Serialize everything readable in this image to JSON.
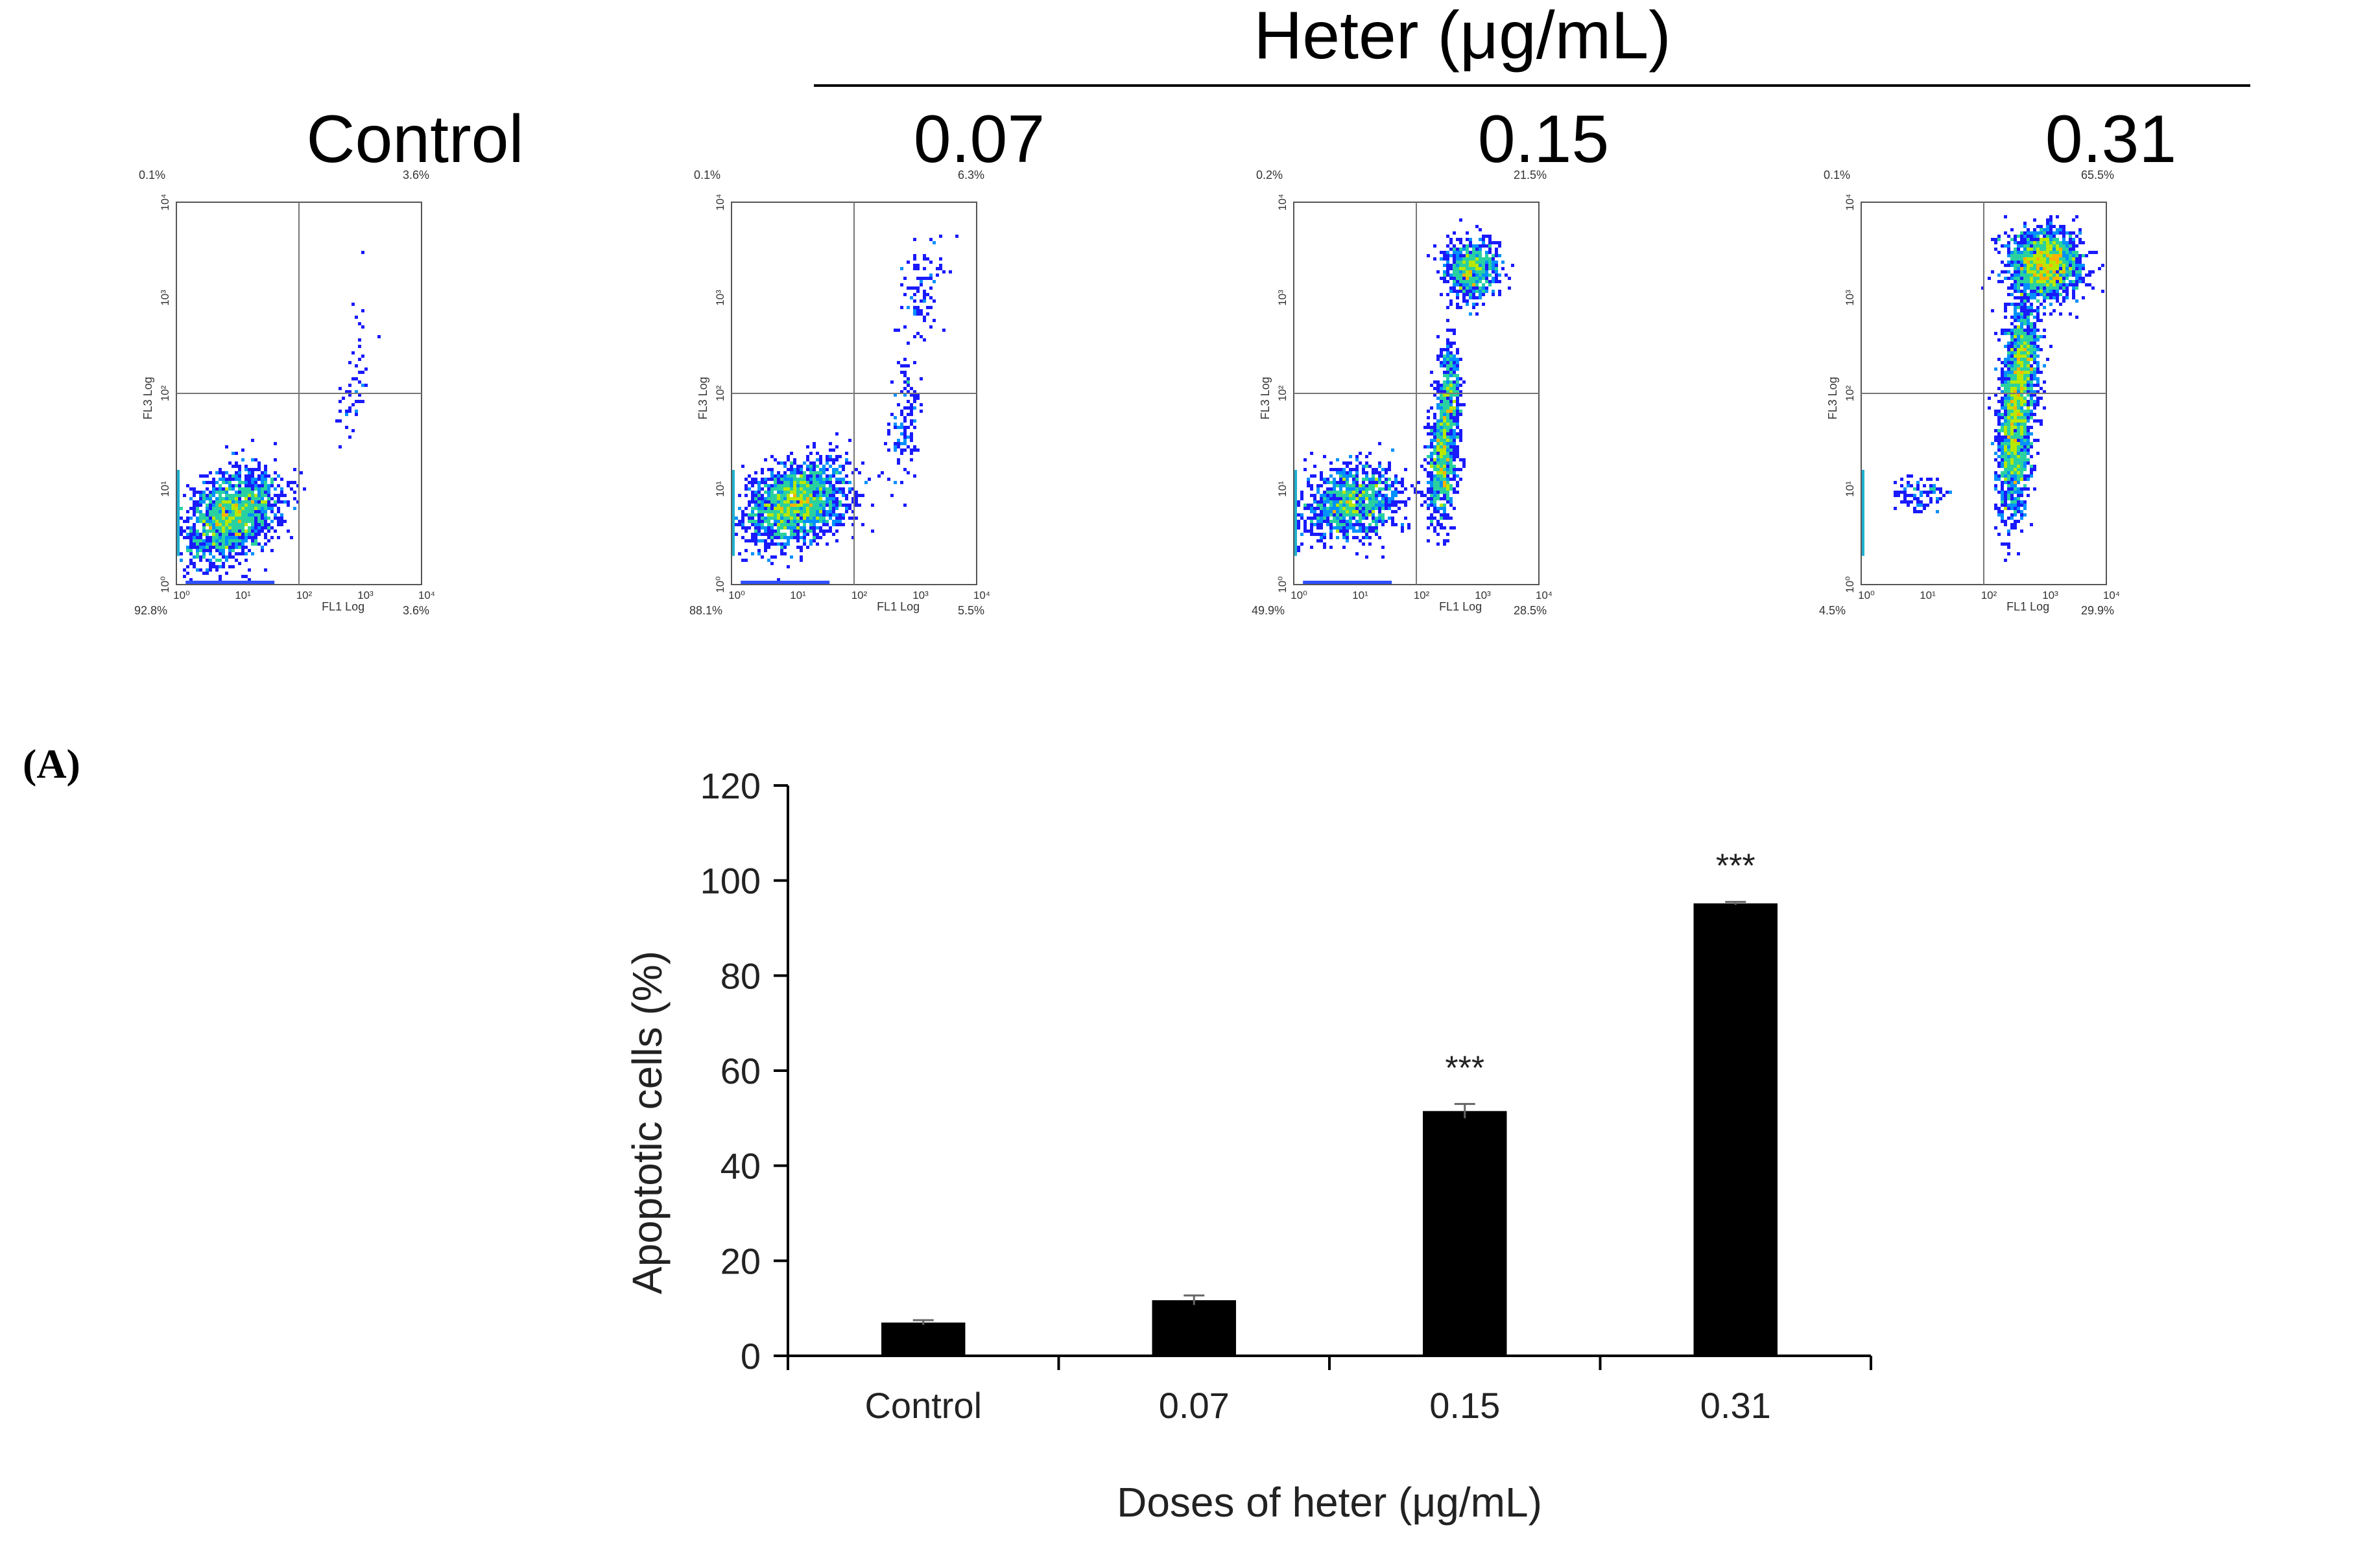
{
  "heading": {
    "title": "Heter (μg/mL)",
    "group_labels": [
      "Control",
      "0.07",
      "0.15",
      "0.31"
    ]
  },
  "panel_label": "(A)",
  "flow_panels": [
    {
      "name": "Control",
      "x_axis_label": "FL1 Log",
      "y_axis_label": "FL3 Log",
      "quadrants": {
        "upper_left": "0.1%",
        "upper_right": "3.6%",
        "lower_left": "92.8%",
        "lower_right": "3.6%"
      },
      "x_ticks": [
        "10⁰",
        "10¹",
        "10²",
        "10³",
        "10⁴"
      ],
      "y_ticks": [
        "10⁰",
        "10¹",
        "10²",
        "10³",
        "10⁴"
      ],
      "clusters": [
        {
          "x": 0.9,
          "y": 0.72,
          "sx": 0.38,
          "sy": 0.22,
          "n": 1700,
          "tilt": 0.25
        },
        {
          "x": 2.85,
          "y": 1.9,
          "sx": 0.1,
          "sy": 0.18,
          "n": 40,
          "tilt": 0.6
        },
        {
          "x": 3.0,
          "y": 2.8,
          "sx": 0.08,
          "sy": 0.35,
          "n": 12,
          "tilt": 0
        }
      ]
    },
    {
      "name": "0.07",
      "x_axis_label": "FL1 Log",
      "y_axis_label": "FL3 Log",
      "quadrants": {
        "upper_left": "0.1%",
        "upper_right": "6.3%",
        "lower_left": "88.1%",
        "lower_right": "5.5%"
      },
      "x_ticks": [
        "10⁰",
        "10¹",
        "10²",
        "10³",
        "10⁴"
      ],
      "y_ticks": [
        "10⁰",
        "10¹",
        "10²",
        "10³",
        "10⁴"
      ],
      "clusters": [
        {
          "x": 1.05,
          "y": 0.85,
          "sx": 0.42,
          "sy": 0.2,
          "n": 1800,
          "tilt": 0.15
        },
        {
          "x": 2.8,
          "y": 1.65,
          "sx": 0.13,
          "sy": 0.3,
          "n": 120,
          "tilt": 0.7
        },
        {
          "x": 3.1,
          "y": 3.1,
          "sx": 0.18,
          "sy": 0.28,
          "n": 90,
          "tilt": 0.5
        }
      ]
    },
    {
      "name": "0.15",
      "x_axis_label": "FL1 Log",
      "y_axis_label": "FL3 Log",
      "quadrants": {
        "upper_left": "0.2%",
        "upper_right": "21.5%",
        "lower_left": "49.9%",
        "lower_right": "28.5%"
      },
      "x_ticks": [
        "10⁰",
        "10¹",
        "10²",
        "10³",
        "10⁴"
      ],
      "y_ticks": [
        "10⁰",
        "10¹",
        "10²",
        "10³",
        "10⁴"
      ],
      "clusters": [
        {
          "x": 0.95,
          "y": 0.85,
          "sx": 0.4,
          "sy": 0.2,
          "n": 1100,
          "tilt": 0.1
        },
        {
          "x": 2.45,
          "y": 1.4,
          "sx": 0.12,
          "sy": 0.35,
          "n": 900,
          "tilt": 0.8
        },
        {
          "x": 2.55,
          "y": 2.1,
          "sx": 0.08,
          "sy": 0.25,
          "n": 220,
          "tilt": 0
        },
        {
          "x": 2.9,
          "y": 3.3,
          "sx": 0.22,
          "sy": 0.15,
          "n": 700,
          "tilt": 0
        }
      ]
    },
    {
      "name": "0.31",
      "x_axis_label": "FL1 Log",
      "y_axis_label": "FL3 Log",
      "quadrants": {
        "upper_left": "0.1%",
        "upper_right": "65.5%",
        "lower_left": "4.5%",
        "lower_right": "29.9%"
      },
      "x_ticks": [
        "10⁰",
        "10¹",
        "10²",
        "10³",
        "10⁴"
      ],
      "y_ticks": [
        "10⁰",
        "10¹",
        "10²",
        "10³",
        "10⁴"
      ],
      "clusters": [
        {
          "x": 0.95,
          "y": 0.95,
          "sx": 0.2,
          "sy": 0.1,
          "n": 90,
          "tilt": 0
        },
        {
          "x": 2.5,
          "y": 1.6,
          "sx": 0.13,
          "sy": 0.45,
          "n": 1400,
          "tilt": 0.6
        },
        {
          "x": 2.65,
          "y": 2.35,
          "sx": 0.13,
          "sy": 0.3,
          "n": 700,
          "tilt": 0.3
        },
        {
          "x": 3.0,
          "y": 3.35,
          "sx": 0.3,
          "sy": 0.18,
          "n": 1700,
          "tilt": 0
        }
      ]
    }
  ],
  "chart_data": {
    "type": "bar",
    "categories": [
      "Control",
      "0.07",
      "0.15",
      "0.31"
    ],
    "values": [
      7,
      11.7,
      51.5,
      95.2
    ],
    "errors": [
      0.5,
      1.0,
      1.5,
      0.3
    ],
    "significance": [
      "",
      "",
      "***",
      "***"
    ],
    "xlabel": "Doses of heter (μg/mL)",
    "ylabel": "Apoptotic cells (%)",
    "ylim": [
      0,
      120
    ],
    "yticks": [
      "0",
      "20",
      "40",
      "60",
      "80",
      "100",
      "120"
    ],
    "bar_color": "#000000"
  }
}
